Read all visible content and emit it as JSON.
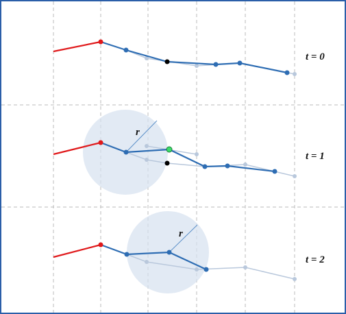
{
  "panels": [
    {
      "label": "t = 0"
    },
    {
      "label": "t = 1",
      "radius_label": "r"
    },
    {
      "label": "t = 2",
      "radius_label": "r"
    }
  ]
}
